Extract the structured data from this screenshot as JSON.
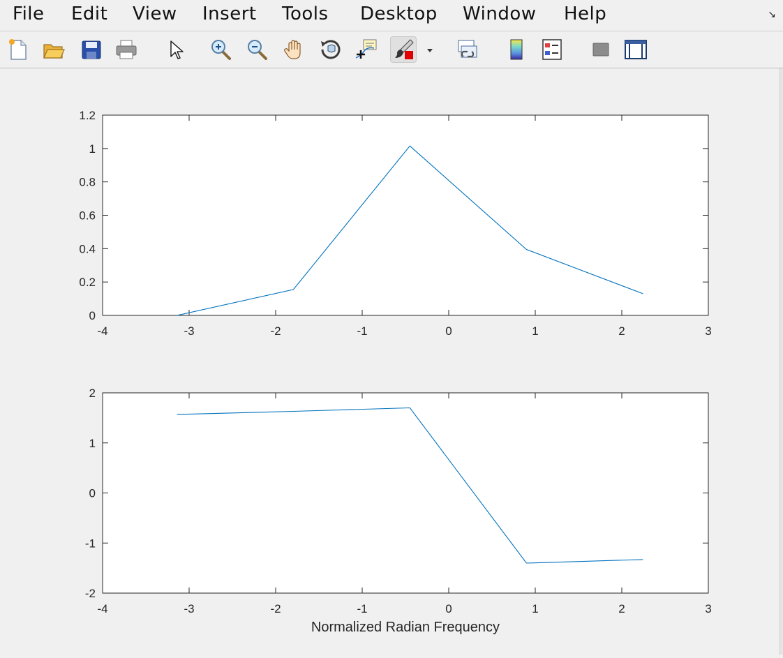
{
  "menubar": {
    "items": [
      "File",
      "Edit",
      "View",
      "Insert",
      "Tools",
      "Desktop",
      "Window",
      "Help"
    ],
    "corner_icon": "dock-arrow-icon"
  },
  "toolbar": {
    "buttons": [
      {
        "icon": "new-figure-icon",
        "label": "New Figure"
      },
      {
        "icon": "open-file-icon",
        "label": "Open File"
      },
      {
        "icon": "save-icon",
        "label": "Save Figure"
      },
      {
        "icon": "print-icon",
        "label": "Print Figure"
      },
      {
        "icon": "edit-plot-pointer-icon",
        "label": "Edit Plot"
      },
      {
        "icon": "zoom-in-icon",
        "label": "Zoom In"
      },
      {
        "icon": "zoom-out-icon",
        "label": "Zoom Out"
      },
      {
        "icon": "pan-hand-icon",
        "label": "Pan"
      },
      {
        "icon": "rotate-3d-icon",
        "label": "Rotate 3D"
      },
      {
        "icon": "data-cursor-icon",
        "label": "Data Cursor"
      },
      {
        "icon": "brush-icon",
        "label": "Brush/Select Data"
      },
      {
        "icon": "link-plot-icon",
        "label": "Link Plot"
      },
      {
        "icon": "colorbar-icon",
        "label": "Insert Colorbar"
      },
      {
        "icon": "legend-icon",
        "label": "Insert Legend"
      },
      {
        "icon": "hide-plot-tools-icon",
        "label": "Hide Plot Tools"
      },
      {
        "icon": "show-plot-tools-icon",
        "label": "Show Plot Tools"
      }
    ]
  },
  "colors": {
    "line": "#0072bd",
    "axes_bg": "#ffffff",
    "figure_bg": "#f0f0f0"
  },
  "chart_data": [
    {
      "type": "line",
      "title": "",
      "xlabel": "",
      "ylabel": "",
      "xlim": [
        -4,
        3
      ],
      "ylim": [
        0,
        1.2
      ],
      "xticks": [
        -4,
        -3,
        -2,
        -1,
        0,
        1,
        2,
        3
      ],
      "xtick_labels": [
        "-4",
        "-3",
        "-2",
        "-1",
        "0",
        "1",
        "2",
        "3"
      ],
      "yticks": [
        0,
        0.2,
        0.4,
        0.6,
        0.8,
        1,
        1.2
      ],
      "ytick_labels": [
        "0",
        "0.2",
        "0.4",
        "0.6",
        "0.8",
        "1",
        "1.2"
      ],
      "grid": false,
      "series": [
        {
          "x": [
            -3.14,
            -1.795,
            -0.449,
            0.898,
            2.244
          ],
          "y": [
            0.0,
            0.155,
            1.015,
            0.395,
            0.13
          ]
        }
      ]
    },
    {
      "type": "line",
      "title": "",
      "xlabel": "Normalized Radian Frequency",
      "ylabel": "",
      "xlim": [
        -4,
        3
      ],
      "ylim": [
        -2,
        2
      ],
      "xticks": [
        -4,
        -3,
        -2,
        -1,
        0,
        1,
        2,
        3
      ],
      "xtick_labels": [
        "-4",
        "-3",
        "-2",
        "-1",
        "0",
        "1",
        "2",
        "3"
      ],
      "yticks": [
        -2,
        -1,
        0,
        1,
        2
      ],
      "ytick_labels": [
        "-2",
        "-1",
        "0",
        "1",
        "2"
      ],
      "grid": false,
      "series": [
        {
          "x": [
            -3.14,
            -1.795,
            -0.449,
            0.898,
            2.244
          ],
          "y": [
            1.57,
            1.63,
            1.7,
            -1.4,
            -1.33
          ]
        }
      ]
    }
  ]
}
